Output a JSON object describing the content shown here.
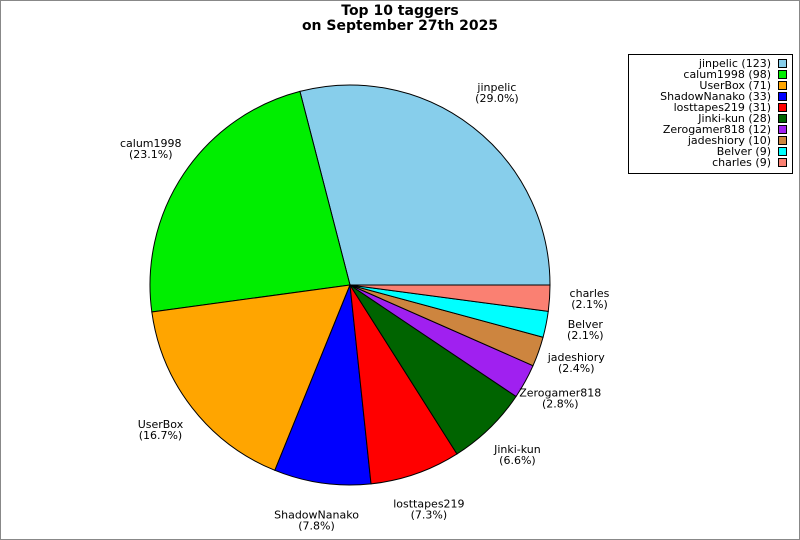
{
  "chart_data": {
    "type": "pie",
    "title": "Top 10 taggers",
    "subtitle": "on September 27th 2025",
    "categories": [
      "jinpelic",
      "calum1998",
      "UserBox",
      "ShadowNanako",
      "losttapes219",
      "Jinki-kun",
      "Zerogamer818",
      "jadeshiory",
      "Belver",
      "charles"
    ],
    "values": [
      29.0,
      23.1,
      16.7,
      7.8,
      7.3,
      6.6,
      2.8,
      2.4,
      2.1,
      2.1
    ],
    "value_labels": [
      "(29.0%)",
      "(23.1%)",
      "(16.7%)",
      "(7.8%)",
      "(7.3%)",
      "(6.6%)",
      "(2.8%)",
      "(2.4%)",
      "(2.1%)",
      "(2.1%)"
    ],
    "legend_labels": [
      "jinpelic (123)",
      "calum1998 (98)",
      "UserBox (71)",
      "ShadowNanako (33)",
      "losttapes219 (31)",
      "Jinki-kun (28)",
      "Zerogamer818 (12)",
      "jadeshiory (10)",
      "Belver (9)",
      "charles (9)"
    ],
    "colors": [
      "#87ceeb",
      "#00ee00",
      "#ffa500",
      "#0000ff",
      "#ff0000",
      "#006400",
      "#a020f0",
      "#cd853f",
      "#00ffff",
      "#fa8072"
    ],
    "legend": "top-right"
  }
}
